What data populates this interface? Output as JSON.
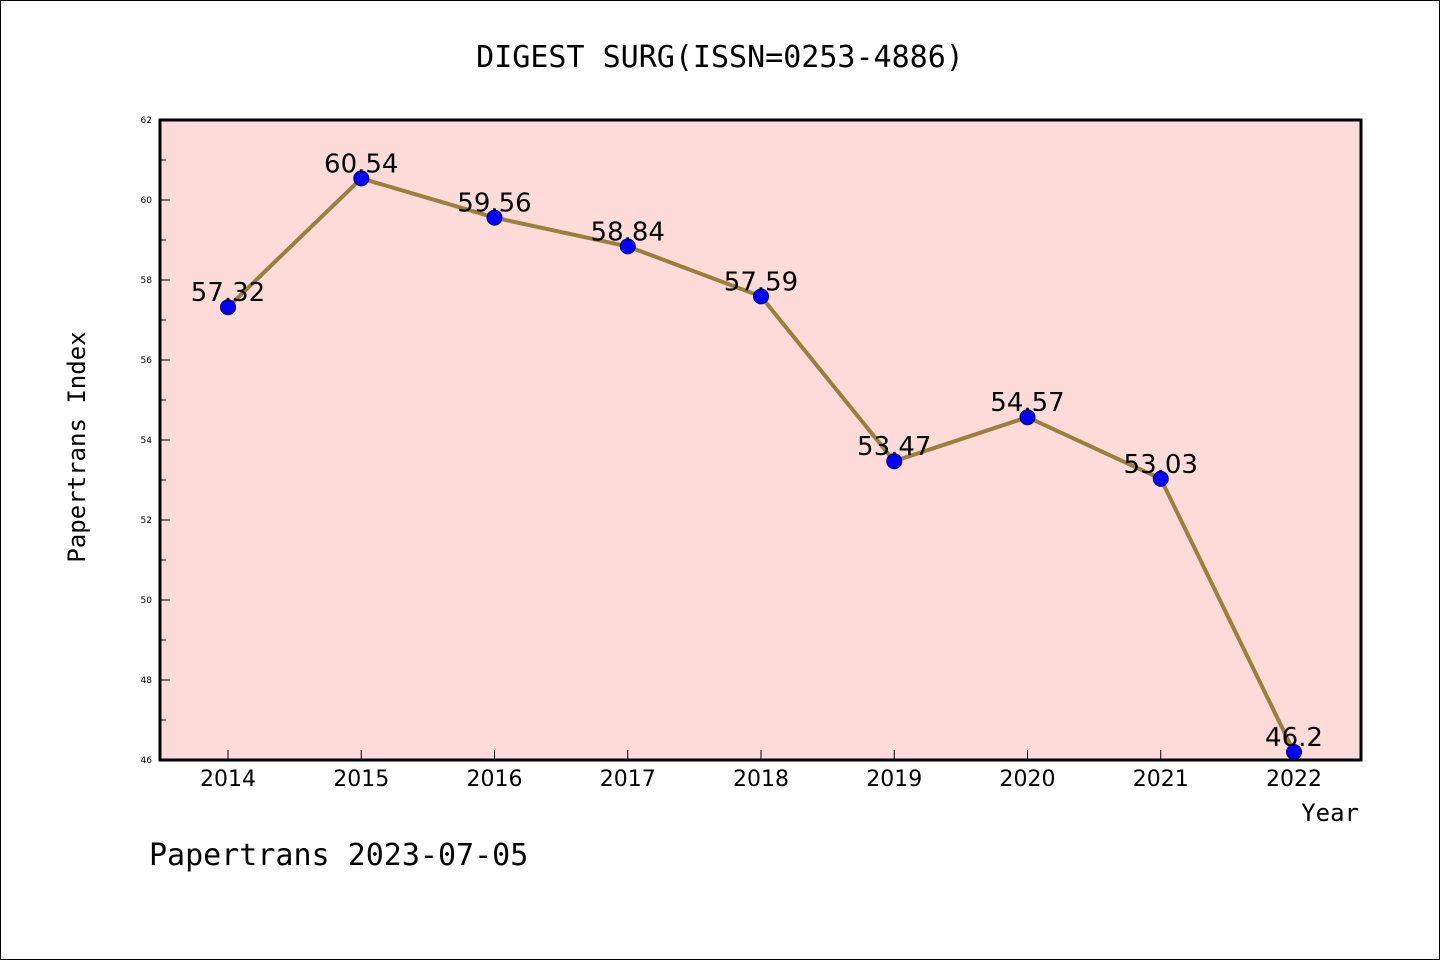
{
  "colors": {
    "plot_background": "#fddbd8",
    "line": "#9b7f3a",
    "marker_fill": "#0000ff",
    "marker_stroke": "#000080",
    "axis": "#000000"
  },
  "chart_data": {
    "type": "line",
    "title": "DIGEST SURG(ISSN=0253-4886)",
    "xlabel": "Year",
    "ylabel": "Papertrans Index",
    "categories": [
      "2014",
      "2015",
      "2016",
      "2017",
      "2018",
      "2019",
      "2020",
      "2021",
      "2022"
    ],
    "series": [
      {
        "values": [
          57.32,
          60.54,
          59.56,
          58.84,
          57.59,
          53.47,
          54.57,
          53.03,
          46.2
        ],
        "labels": [
          "57.32",
          "60.54",
          "59.56",
          "58.84",
          "57.59",
          "53.47",
          "54.57",
          "53.03",
          "46.2"
        ]
      }
    ],
    "ylim": [
      46,
      62
    ],
    "yticks": [
      "46",
      "48",
      "50",
      "52",
      "54",
      "56",
      "58",
      "60",
      "62"
    ],
    "grid": false,
    "legend": "none"
  },
  "footer": {
    "text": "Papertrans 2023-07-05"
  }
}
